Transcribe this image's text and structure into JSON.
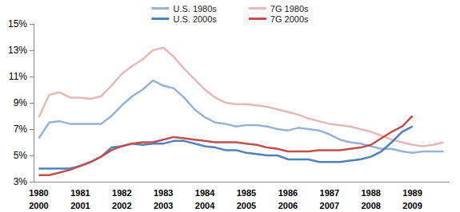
{
  "chart_data": {
    "type": "line",
    "categories": [
      "1980\n2000",
      null,
      null,
      null,
      "1981\n2001",
      null,
      null,
      null,
      "1982\n2002",
      null,
      null,
      null,
      "1983\n2003",
      null,
      null,
      null,
      "1984\n2004",
      null,
      null,
      null,
      "1985\n2005",
      null,
      null,
      null,
      "1986\n2006",
      null,
      null,
      null,
      "1987\n2007",
      null,
      null,
      null,
      "1988\n2008",
      null,
      null,
      null,
      "1989\n2009",
      null,
      null,
      null
    ],
    "series": [
      {
        "name": "U.S. 1980s",
        "color": "#95b3d7",
        "values": [
          6.3,
          7.5,
          7.6,
          7.4,
          7.4,
          7.4,
          7.4,
          8.0,
          8.8,
          9.5,
          10.0,
          10.7,
          10.3,
          10.1,
          9.4,
          8.5,
          7.9,
          7.5,
          7.4,
          7.2,
          7.3,
          7.3,
          7.2,
          7.0,
          6.9,
          7.1,
          7.0,
          6.9,
          6.6,
          6.2,
          6.0,
          5.9,
          5.7,
          5.5,
          5.5,
          5.3,
          5.2,
          5.3,
          5.3,
          5.3
        ]
      },
      {
        "name": "7G 1980s",
        "color": "#e6b9b8",
        "values": [
          7.9,
          9.6,
          9.8,
          9.4,
          9.4,
          9.3,
          9.5,
          10.3,
          11.2,
          11.8,
          12.3,
          13.0,
          13.2,
          12.5,
          11.6,
          10.8,
          10.0,
          9.4,
          9.0,
          8.9,
          8.9,
          8.8,
          8.7,
          8.5,
          8.3,
          8.1,
          7.8,
          7.6,
          7.4,
          7.3,
          7.2,
          7.0,
          6.8,
          6.5,
          6.2,
          6.0,
          5.8,
          5.7,
          5.8,
          6.0
        ]
      },
      {
        "name": "U.S. 2000s",
        "color": "#4f81bd",
        "values": [
          4.0,
          4.0,
          4.0,
          4.0,
          4.2,
          4.5,
          4.9,
          5.6,
          5.7,
          5.9,
          5.8,
          5.9,
          5.9,
          6.1,
          6.1,
          5.9,
          5.7,
          5.6,
          5.4,
          5.4,
          5.2,
          5.1,
          5.0,
          5.0,
          4.7,
          4.7,
          4.7,
          4.5,
          4.5,
          4.5,
          4.6,
          4.7,
          4.9,
          5.3,
          6.0,
          6.8,
          7.2,
          null,
          null,
          null
        ]
      },
      {
        "name": "7G 2000s",
        "color": "#c0504d",
        "values": [
          3.5,
          3.5,
          3.7,
          3.9,
          4.2,
          4.5,
          4.9,
          5.4,
          5.7,
          5.9,
          6.0,
          6.0,
          6.2,
          6.4,
          6.3,
          6.2,
          6.1,
          6.0,
          6.0,
          6.0,
          5.9,
          5.8,
          5.6,
          5.5,
          5.3,
          5.3,
          5.3,
          5.4,
          5.4,
          5.4,
          5.5,
          5.6,
          5.8,
          6.3,
          6.8,
          7.2,
          8.0,
          null,
          null,
          null
        ]
      }
    ],
    "ylim": [
      3,
      15
    ],
    "yticks": [
      {
        "value": 3,
        "label": "3%"
      },
      {
        "value": 5,
        "label": "5%"
      },
      {
        "value": 7,
        "label": "7%"
      },
      {
        "value": 9,
        "label": "9%"
      },
      {
        "value": 11,
        "label": "11%"
      },
      {
        "value": 13,
        "label": "13%"
      },
      {
        "value": 15,
        "label": "15%"
      }
    ],
    "grid": false,
    "legend": "top"
  }
}
